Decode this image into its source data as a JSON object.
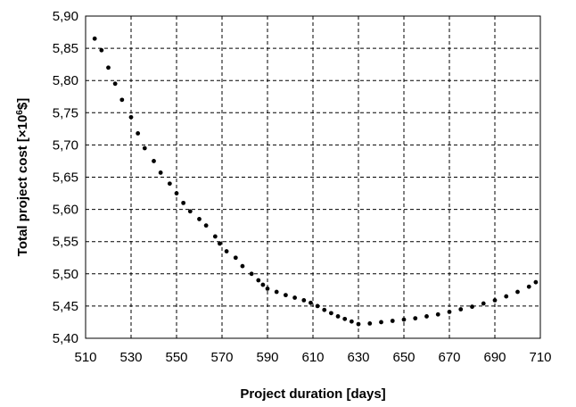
{
  "chart_data": {
    "type": "scatter",
    "xlabel": "Project duration [days]",
    "ylabel_parts": {
      "pre": "Total project cost [×10",
      "sup": "6",
      "post": "$]"
    },
    "xlim": [
      510,
      710
    ],
    "ylim": [
      5.4,
      5.9
    ],
    "x_ticks": [
      "510",
      "530",
      "550",
      "570",
      "590",
      "610",
      "630",
      "650",
      "670",
      "690",
      "710"
    ],
    "y_ticks": [
      "5,40",
      "5,45",
      "5,50",
      "5,55",
      "5,60",
      "5,65",
      "5,70",
      "5,75",
      "5,80",
      "5,85",
      "5,90"
    ],
    "grid": true,
    "marker_color": "#000000",
    "series": [
      {
        "x": [
          514,
          517,
          520,
          523,
          526,
          530,
          533,
          536,
          540,
          543,
          547,
          550,
          553,
          556,
          560,
          563,
          567,
          569,
          572,
          576,
          579,
          583,
          586,
          588,
          590,
          594,
          598,
          602,
          606,
          609,
          612,
          615,
          618,
          621,
          624,
          627,
          630,
          635,
          640,
          645,
          650,
          655,
          660,
          665,
          670,
          675,
          680,
          685,
          690,
          695,
          700,
          705,
          708
        ],
        "y": [
          5.865,
          5.847,
          5.82,
          5.795,
          5.77,
          5.743,
          5.718,
          5.695,
          5.675,
          5.657,
          5.64,
          5.625,
          5.61,
          5.597,
          5.585,
          5.575,
          5.558,
          5.547,
          5.535,
          5.525,
          5.512,
          5.5,
          5.49,
          5.483,
          5.477,
          5.472,
          5.467,
          5.463,
          5.459,
          5.455,
          5.45,
          5.444,
          5.439,
          5.434,
          5.43,
          5.426,
          5.422,
          5.423,
          5.425,
          5.427,
          5.429,
          5.431,
          5.434,
          5.437,
          5.441,
          5.445,
          5.449,
          5.454,
          5.459,
          5.465,
          5.472,
          5.48,
          5.487
        ]
      }
    ]
  }
}
